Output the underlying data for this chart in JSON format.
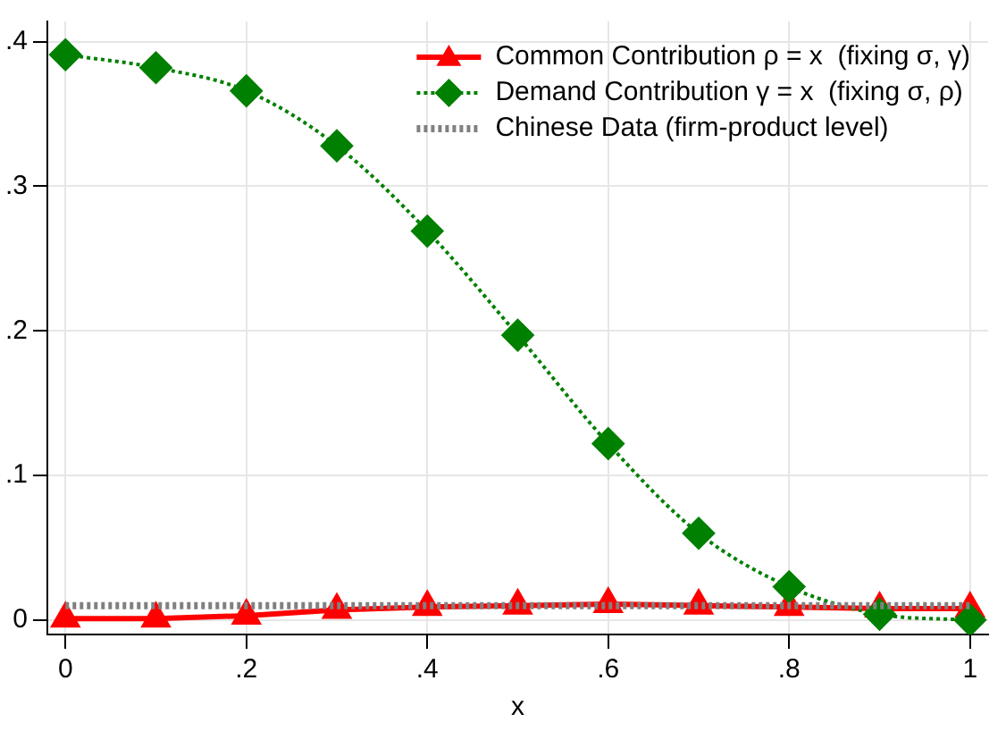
{
  "chart_data": {
    "type": "line",
    "xlabel": "x",
    "x": [
      0,
      0.1,
      0.2,
      0.3,
      0.4,
      0.5,
      0.6,
      0.7,
      0.8,
      0.9,
      1
    ],
    "series": [
      {
        "name": "Common Contribution ρ = x  (fixing σ, γ)",
        "color": "#ff0000",
        "marker": "triangle",
        "line_style": "solid",
        "values": [
          0.001,
          0.001,
          0.003,
          0.007,
          0.009,
          0.01,
          0.011,
          0.01,
          0.009,
          0.008,
          0.008
        ]
      },
      {
        "name": "Demand Contribution γ = x  (fixing σ, ρ)",
        "color": "#008000",
        "marker": "diamond",
        "line_style": "dotted",
        "values": [
          0.391,
          0.382,
          0.366,
          0.328,
          0.269,
          0.197,
          0.122,
          0.06,
          0.023,
          0.004,
          0.0
        ]
      },
      {
        "name": "Chinese Data (firm-product level)",
        "color": "#808080",
        "marker": "none",
        "line_style": "dotted",
        "x": [
          0,
          1
        ],
        "values": [
          0.01,
          0.01
        ]
      }
    ],
    "xlim": [
      -0.02,
      1.02
    ],
    "ylim": [
      -0.01,
      0.414
    ],
    "xticks": [
      0,
      {
        "value": 0.2,
        "label": ".2"
      },
      {
        "value": 0.4,
        "label": ".4"
      },
      {
        "value": 0.6,
        "label": ".6"
      },
      {
        "value": 0.8,
        "label": ".8"
      },
      1
    ],
    "yticks": [
      0,
      {
        "value": 0.1,
        "label": ".1"
      },
      {
        "value": 0.2,
        "label": ".2"
      },
      {
        "value": 0.3,
        "label": ".3"
      },
      {
        "value": 0.4,
        "label": ".4"
      }
    ],
    "grid": true,
    "legend": "top right"
  }
}
